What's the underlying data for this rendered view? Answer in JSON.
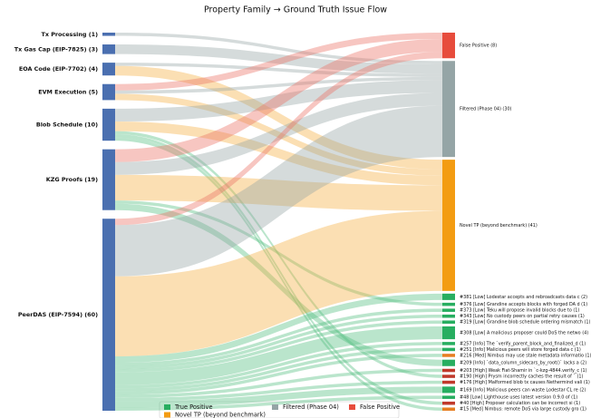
{
  "chart_data": {
    "type": "sankey",
    "title": "Property Family → Ground Truth Issue Flow",
    "nodes": [
      {
        "label": "Tx Processing  (1)",
        "value": 1,
        "color": "#4a6fb0",
        "side": "left"
      },
      {
        "label": "Tx Gas Cap (EIP-7825)  (3)",
        "value": 3,
        "color": "#4a6fb0",
        "side": "left"
      },
      {
        "label": "EOA Code (EIP-7702)  (4)",
        "value": 4,
        "color": "#4a6fb0",
        "side": "left"
      },
      {
        "label": "EVM Execution  (5)",
        "value": 5,
        "color": "#4a6fb0",
        "side": "left"
      },
      {
        "label": "Blob Schedule  (10)",
        "value": 10,
        "color": "#4a6fb0",
        "side": "left"
      },
      {
        "label": "KZG Proofs  (19)",
        "value": 19,
        "color": "#4a6fb0",
        "side": "left"
      },
      {
        "label": "PeerDAS (EIP-7594)  (60)",
        "value": 60,
        "color": "#4a6fb0",
        "side": "left"
      },
      {
        "label": "False Positive  (8)",
        "value": 8,
        "color": "#e74c3c",
        "side": "right"
      },
      {
        "label": "Filtered (Phase 04)  (30)",
        "value": 30,
        "color": "#95a5a6",
        "side": "right"
      },
      {
        "label": "Novel TP (beyond benchmark)  (41)",
        "value": 41,
        "color": "#f39c12",
        "side": "right"
      },
      {
        "label": "#381 [Low] Lodestar accepts and rebroadcasts data c  (2)",
        "value": 2,
        "color": "#27ae60",
        "side": "right"
      },
      {
        "label": "#376 [Low] Grandine accepts blocks with forged DA d  (1)",
        "value": 1,
        "color": "#27ae60",
        "side": "right"
      },
      {
        "label": "#373 [Low] Teku will propose invalid blocks due to  (1)",
        "value": 1,
        "color": "#27ae60",
        "side": "right"
      },
      {
        "label": "#343 [Low] No custody peers on partial retry causes  (1)",
        "value": 1,
        "color": "#27ae60",
        "side": "right"
      },
      {
        "label": "#319 [Low] Grandine blob schedule ordering mismatch  (1)",
        "value": 1,
        "color": "#27ae60",
        "side": "right"
      },
      {
        "label": "#308 [Low] A malicious proposer could DoS the netwo  (4)",
        "value": 4,
        "color": "#27ae60",
        "side": "right"
      },
      {
        "label": "#257 [Info] The `verify_parent_block_and_finalized_d  (1)",
        "value": 1,
        "color": "#27ae60",
        "side": "right"
      },
      {
        "label": "#251 [Info] Malicious peers will store forged data c  (1)",
        "value": 1,
        "color": "#27ae60",
        "side": "right"
      },
      {
        "label": "#216 [Med] Nimbus may use stale metadata informatio  (1)",
        "value": 1,
        "color": "#e67e22",
        "side": "right"
      },
      {
        "label": "#209 [Info] `data_column_sidecars_by_root()` lacks a  (2)",
        "value": 2,
        "color": "#27ae60",
        "side": "right"
      },
      {
        "label": "#203 [High] Weak Fiat-Shamir in `c-kzg-4844.verify_c  (1)",
        "value": 1,
        "color": "#c0392b",
        "side": "right"
      },
      {
        "label": "#190 [High] Prysm incorrectly caches the result of `  (1)",
        "value": 1,
        "color": "#c0392b",
        "side": "right"
      },
      {
        "label": "#176 [High] Malformed blob tx causes Nethermind vali  (1)",
        "value": 1,
        "color": "#c0392b",
        "side": "right"
      },
      {
        "label": "#169 [Info] Malicious peers can waste Lodestar CL re  (2)",
        "value": 2,
        "color": "#27ae60",
        "side": "right"
      },
      {
        "label": "#48 [Low] Lighthouse uses latest version 0.9.0 of  (1)",
        "value": 1,
        "color": "#27ae60",
        "side": "right"
      },
      {
        "label": "#40 [High] Proposer calculation can be incorrect si  (1)",
        "value": 1,
        "color": "#c0392b",
        "side": "right"
      },
      {
        "label": "#15 [Med] Nimbus: remote DoS via large custody gro  (1)",
        "value": 1,
        "color": "#e67e22",
        "side": "right"
      }
    ],
    "links": [
      {
        "source": 0,
        "target": 8,
        "value": 1,
        "color": "#95a5a6"
      },
      {
        "source": 1,
        "target": 8,
        "value": 3,
        "color": "#95a5a6"
      },
      {
        "source": 2,
        "target": 8,
        "value": 1,
        "color": "#95a5a6"
      },
      {
        "source": 2,
        "target": 9,
        "value": 3,
        "color": "#f5b041"
      },
      {
        "source": 3,
        "target": 7,
        "value": 2,
        "color": "#ec7063"
      },
      {
        "source": 3,
        "target": 8,
        "value": 1,
        "color": "#95a5a6"
      },
      {
        "source": 3,
        "target": 9,
        "value": 2,
        "color": "#f5b041"
      },
      {
        "source": 4,
        "target": 8,
        "value": 4,
        "color": "#95a5a6"
      },
      {
        "source": 4,
        "target": 9,
        "value": 3,
        "color": "#f5b041"
      },
      {
        "source": 4,
        "target": 21,
        "value": 1,
        "color": "#52be80"
      },
      {
        "source": 4,
        "target": 25,
        "value": 1,
        "color": "#52be80"
      },
      {
        "source": 4,
        "target": 26,
        "value": 1,
        "color": "#52be80"
      },
      {
        "source": 5,
        "target": 7,
        "value": 4,
        "color": "#ec7063"
      },
      {
        "source": 5,
        "target": 8,
        "value": 4,
        "color": "#95a5a6"
      },
      {
        "source": 5,
        "target": 9,
        "value": 8,
        "color": "#f5b041"
      },
      {
        "source": 5,
        "target": 11,
        "value": 1,
        "color": "#52be80"
      },
      {
        "source": 5,
        "target": 19,
        "value": 2,
        "color": "#52be80"
      },
      {
        "source": 6,
        "target": 7,
        "value": 2,
        "color": "#ec7063"
      },
      {
        "source": 6,
        "target": 8,
        "value": 16,
        "color": "#95a5a6"
      },
      {
        "source": 6,
        "target": 9,
        "value": 25,
        "color": "#f5b041"
      },
      {
        "source": 6,
        "target": 10,
        "value": 2,
        "color": "#52be80"
      },
      {
        "source": 6,
        "target": 12,
        "value": 1,
        "color": "#52be80"
      },
      {
        "source": 6,
        "target": 13,
        "value": 1,
        "color": "#52be80"
      },
      {
        "source": 6,
        "target": 14,
        "value": 1,
        "color": "#52be80"
      },
      {
        "source": 6,
        "target": 15,
        "value": 4,
        "color": "#52be80"
      },
      {
        "source": 6,
        "target": 16,
        "value": 1,
        "color": "#52be80"
      },
      {
        "source": 6,
        "target": 17,
        "value": 1,
        "color": "#52be80"
      },
      {
        "source": 6,
        "target": 18,
        "value": 1,
        "color": "#52be80"
      },
      {
        "source": 6,
        "target": 20,
        "value": 1,
        "color": "#52be80"
      },
      {
        "source": 6,
        "target": 22,
        "value": 1,
        "color": "#52be80"
      },
      {
        "source": 6,
        "target": 23,
        "value": 2,
        "color": "#52be80"
      },
      {
        "source": 6,
        "target": 24,
        "value": 1,
        "color": "#52be80"
      }
    ],
    "legend": [
      {
        "name": "True Positive",
        "color": "#27ae60"
      },
      {
        "name": "Filtered (Phase 04)",
        "color": "#95a5a6"
      },
      {
        "name": "False Positive",
        "color": "#e74c3c"
      },
      {
        "name": "Novel TP (beyond benchmark)",
        "color": "#f39c12"
      }
    ]
  }
}
